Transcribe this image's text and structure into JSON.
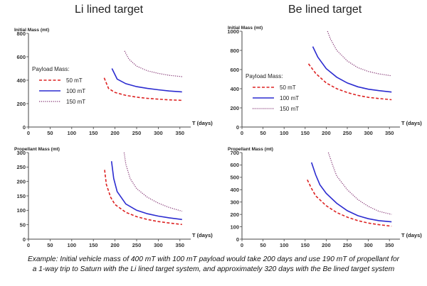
{
  "titles": {
    "left": "Li lined target",
    "right": "Be lined target"
  },
  "caption": {
    "line1": "Example: Initial vehicle mass of 400 mT with 100 mT payload would take 200 days and use 190 mT of propellant for",
    "line2": "a 1-way trip to Saturn with the Li lined target system, and approximately 320 days with the Be lined target system"
  },
  "colors": {
    "50 mT": "#dd2222",
    "100 mT": "#2b2bd0",
    "150 mT": "#803070"
  },
  "chart_data": [
    {
      "type": "line",
      "title": "Li lined target",
      "ylabel": "Initial Mass (mt)",
      "xlabel": "T (days)",
      "xlim": [
        0,
        375
      ],
      "ylim": [
        0,
        800
      ],
      "grid": false,
      "xticks": [
        "0",
        "50",
        "100",
        "150",
        "200",
        "250",
        "300",
        "350"
      ],
      "yticks": [
        "0",
        "200",
        "400",
        "600",
        "800"
      ],
      "legend": {
        "title": "Payload Mass:",
        "position": "left",
        "entries": [
          {
            "label": "50 mT",
            "style": "dashed"
          },
          {
            "label": "100 mT",
            "style": "solid"
          },
          {
            "label": "150 mT",
            "style": "dotted"
          }
        ]
      },
      "series": [
        {
          "name": "50 mT",
          "style": "dashed",
          "x": [
            175,
            185,
            200,
            225,
            250,
            275,
            300,
            325,
            355
          ],
          "y": [
            420,
            330,
            295,
            270,
            255,
            245,
            238,
            232,
            228
          ]
        },
        {
          "name": "100 mT",
          "style": "solid",
          "x": [
            193,
            205,
            225,
            250,
            275,
            300,
            325,
            355
          ],
          "y": [
            500,
            410,
            370,
            345,
            330,
            318,
            308,
            300
          ]
        },
        {
          "name": "150 mT",
          "style": "dotted",
          "x": [
            222,
            232,
            250,
            275,
            300,
            325,
            355
          ],
          "y": [
            650,
            580,
            520,
            480,
            458,
            442,
            430
          ]
        }
      ]
    },
    {
      "type": "line",
      "title": "Be lined target",
      "ylabel": "Initial Mass (mt)",
      "xlabel": "T (days)",
      "xlim": [
        0,
        375
      ],
      "ylim": [
        0,
        1000
      ],
      "grid": false,
      "xticks": [
        "0",
        "50",
        "100",
        "150",
        "200",
        "250",
        "300",
        "350"
      ],
      "yticks": [
        "0",
        "200",
        "400",
        "600",
        "800",
        "1000"
      ],
      "legend": {
        "title": "Payload Mass:",
        "position": "right",
        "entries": [
          {
            "label": "50 mT",
            "style": "dashed"
          },
          {
            "label": "100 mT",
            "style": "solid"
          },
          {
            "label": "150 mT",
            "style": "dotted"
          }
        ]
      },
      "series": [
        {
          "name": "50 mT",
          "style": "dashed",
          "x": [
            158,
            175,
            200,
            225,
            250,
            275,
            300,
            325,
            355
          ],
          "y": [
            660,
            560,
            460,
            400,
            360,
            330,
            310,
            298,
            285
          ]
        },
        {
          "name": "100 mT",
          "style": "solid",
          "x": [
            168,
            180,
            200,
            225,
            250,
            275,
            300,
            325,
            355
          ],
          "y": [
            840,
            730,
            610,
            520,
            460,
            420,
            395,
            380,
            365
          ]
        },
        {
          "name": "150 mT",
          "style": "dotted",
          "x": [
            203,
            210,
            225,
            250,
            275,
            300,
            325,
            355
          ],
          "y": [
            1000,
            920,
            800,
            690,
            620,
            580,
            555,
            535
          ]
        }
      ]
    },
    {
      "type": "line",
      "title": "",
      "ylabel": "Propellant Mass (mt)",
      "xlabel": "T (days)",
      "xlim": [
        0,
        375
      ],
      "ylim": [
        0,
        300
      ],
      "grid": false,
      "xticks": [
        "0",
        "50",
        "100",
        "150",
        "200",
        "250",
        "300",
        "350"
      ],
      "yticks": [
        "0",
        "50",
        "100",
        "150",
        "200",
        "250",
        "300"
      ],
      "series": [
        {
          "name": "50 mT",
          "style": "dashed",
          "x": [
            176,
            180,
            190,
            200,
            225,
            250,
            275,
            300,
            325,
            355
          ],
          "y": [
            240,
            190,
            145,
            120,
            93,
            78,
            68,
            61,
            56,
            51
          ]
        },
        {
          "name": "100 mT",
          "style": "solid",
          "x": [
            192,
            197,
            205,
            225,
            250,
            275,
            300,
            325,
            355
          ],
          "y": [
            270,
            210,
            165,
            122,
            100,
            88,
            80,
            74,
            68
          ]
        },
        {
          "name": "150 mT",
          "style": "dotted",
          "x": [
            221,
            225,
            235,
            250,
            275,
            300,
            325,
            355
          ],
          "y": [
            300,
            260,
            210,
            175,
            145,
            125,
            110,
            97
          ]
        }
      ]
    },
    {
      "type": "line",
      "title": "",
      "ylabel": "Propellant Mass (mt)",
      "xlabel": "T (days)",
      "xlim": [
        0,
        375
      ],
      "ylim": [
        0,
        700
      ],
      "grid": false,
      "xticks": [
        "0",
        "50",
        "100",
        "150",
        "200",
        "250",
        "300",
        "350"
      ],
      "yticks": [
        "0",
        "100",
        "200",
        "300",
        "400",
        "500",
        "600",
        "700"
      ],
      "series": [
        {
          "name": "50 mT",
          "style": "dashed",
          "x": [
            155,
            165,
            175,
            200,
            225,
            250,
            275,
            300,
            325,
            355
          ],
          "y": [
            480,
            410,
            350,
            270,
            215,
            178,
            150,
            130,
            117,
            105
          ]
        },
        {
          "name": "100 mT",
          "style": "solid",
          "x": [
            165,
            175,
            185,
            200,
            225,
            250,
            275,
            300,
            325,
            355
          ],
          "y": [
            620,
            520,
            440,
            370,
            290,
            230,
            190,
            165,
            150,
            140
          ]
        },
        {
          "name": "150 mT",
          "style": "dotted",
          "x": [
            205,
            215,
            225,
            250,
            275,
            300,
            325,
            355
          ],
          "y": [
            700,
            600,
            510,
            400,
            320,
            265,
            225,
            200
          ]
        }
      ]
    }
  ]
}
